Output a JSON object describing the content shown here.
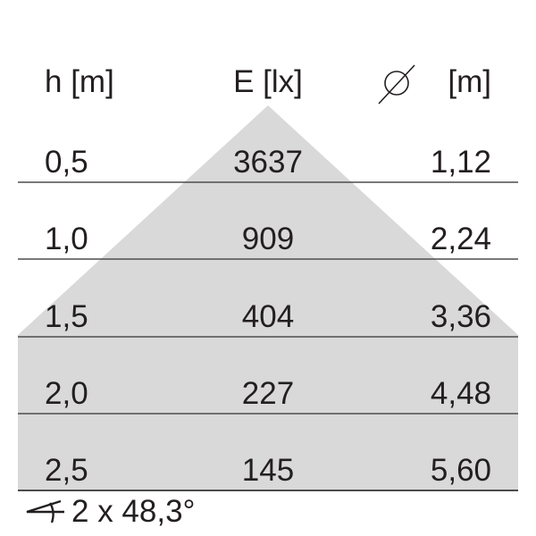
{
  "headers": {
    "height": "h [m]",
    "illuminance": "E [lx]",
    "diameter_unit": "[m]",
    "diameter_icon": "diameter-icon"
  },
  "rows": [
    {
      "h": "0,5",
      "e": "3637",
      "d": "1,12"
    },
    {
      "h": "1,0",
      "e": "909",
      "d": "2,24"
    },
    {
      "h": "1,5",
      "e": "404",
      "d": "3,36"
    },
    {
      "h": "2,0",
      "e": "227",
      "d": "4,48"
    },
    {
      "h": "2,5",
      "e": "145",
      "d": "5,60"
    }
  ],
  "beam_angle": "2 x 48,3°",
  "colors": {
    "cone": "#d9d9d9",
    "lines": "#4d4d4d",
    "text": "#231f20"
  }
}
